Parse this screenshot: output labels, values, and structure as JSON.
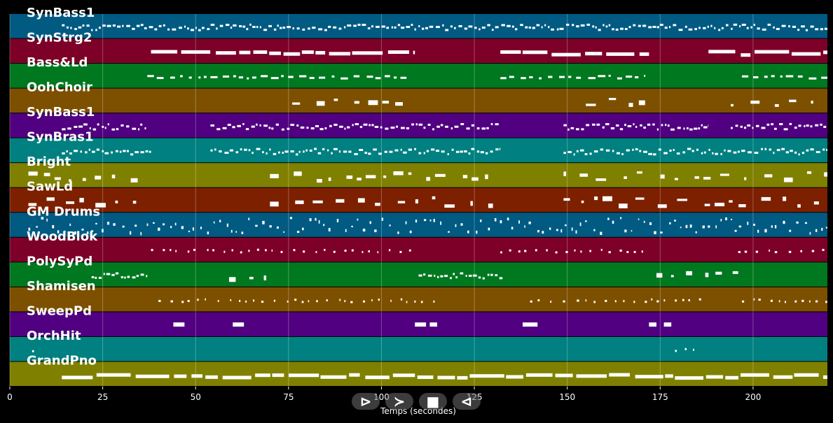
{
  "chart_data": {
    "type": "piano-roll",
    "xlabel": "Temps (secondes)",
    "xlim": [
      0,
      220
    ],
    "xticks": [
      0,
      25,
      50,
      75,
      100,
      125,
      150,
      175,
      200
    ],
    "grid": true,
    "tracks": [
      {
        "name": "SynBass1",
        "color": "#005a82",
        "activity": [
          [
            14,
            220,
            "dense"
          ]
        ]
      },
      {
        "name": "SynStrg2",
        "color": "#7d0028",
        "activity": [
          [
            38,
            109,
            "long"
          ],
          [
            132,
            172,
            "long"
          ],
          [
            188,
            220,
            "long"
          ]
        ]
      },
      {
        "name": "Bass&Ld",
        "color": "#007820",
        "activity": [
          [
            37,
            108,
            "short"
          ],
          [
            132,
            171,
            "short"
          ],
          [
            197,
            220,
            "short"
          ]
        ]
      },
      {
        "name": "OohChoir",
        "color": "#7d5000",
        "activity": [
          [
            76,
            107,
            "sparse"
          ],
          [
            155,
            172,
            "sparse"
          ],
          [
            194,
            218,
            "sparse"
          ]
        ]
      },
      {
        "name": "SynBass1",
        "color": "#500080",
        "activity": [
          [
            14,
            37,
            "dense"
          ],
          [
            54,
            132,
            "dense"
          ],
          [
            149,
            188,
            "dense"
          ],
          [
            194,
            220,
            "dense"
          ]
        ]
      },
      {
        "name": "SynBras1",
        "color": "#008080",
        "activity": [
          [
            14,
            38,
            "dense"
          ],
          [
            54,
            132,
            "dense"
          ],
          [
            149,
            220,
            "dense"
          ]
        ]
      },
      {
        "name": "Bright",
        "color": "#808000",
        "activity": [
          [
            5,
            37,
            "sparse"
          ],
          [
            70,
            130,
            "sparse"
          ],
          [
            149,
            220,
            "sparse"
          ]
        ]
      },
      {
        "name": "SawLd",
        "color": "#7d2000",
        "activity": [
          [
            5,
            36,
            "sparse"
          ],
          [
            70,
            130,
            "sparse"
          ],
          [
            149,
            220,
            "sparse"
          ]
        ]
      },
      {
        "name": "GM Drums",
        "color": "#005a82",
        "activity": [
          [
            5,
            220,
            "drums"
          ]
        ]
      },
      {
        "name": "WoodBlok",
        "color": "#7d0028",
        "activity": [
          [
            38,
            109,
            "ticks"
          ],
          [
            132,
            172,
            "ticks"
          ],
          [
            196,
            220,
            "ticks"
          ]
        ]
      },
      {
        "name": "PolySyPd",
        "color": "#007820",
        "activity": [
          [
            22,
            37,
            "dense"
          ],
          [
            59,
            69,
            "sparse"
          ],
          [
            110,
            133,
            "dense"
          ],
          [
            174,
            196,
            "sparse"
          ]
        ]
      },
      {
        "name": "Shamisen",
        "color": "#7d5000",
        "activity": [
          [
            40,
            115,
            "ticks"
          ],
          [
            140,
            187,
            "ticks"
          ],
          [
            197,
            220,
            "ticks"
          ]
        ]
      },
      {
        "name": "SweepPd",
        "color": "#500080",
        "activity": [
          [
            44,
            47,
            "block"
          ],
          [
            60,
            63,
            "block"
          ],
          [
            109,
            112,
            "block"
          ],
          [
            113,
            115,
            "block"
          ],
          [
            138,
            142,
            "block"
          ],
          [
            172,
            174,
            "block"
          ],
          [
            176,
            178,
            "block"
          ]
        ]
      },
      {
        "name": "OrchHit",
        "color": "#008080",
        "activity": [
          [
            6,
            7,
            "ticks"
          ],
          [
            179,
            186,
            "ticks"
          ]
        ]
      },
      {
        "name": "GrandPno",
        "color": "#808000",
        "activity": [
          [
            14,
            220,
            "long"
          ]
        ]
      }
    ]
  },
  "controls": {
    "first_icon": "⊳",
    "next_icon": "≻",
    "stop_icon": "■",
    "prev_icon": "⊲"
  }
}
